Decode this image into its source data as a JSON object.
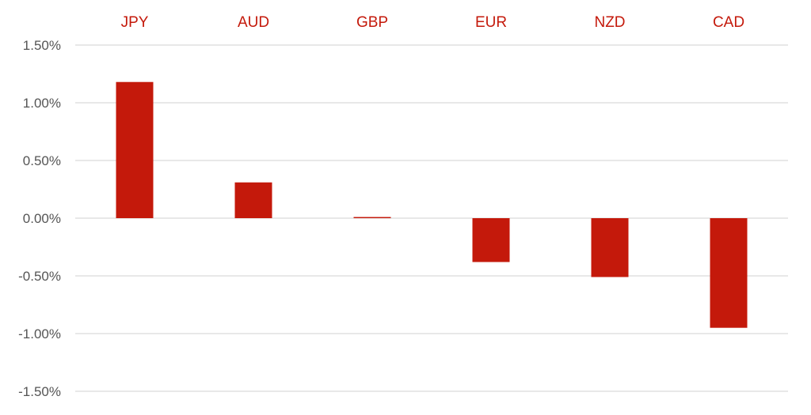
{
  "chart_data": {
    "type": "bar",
    "title": "",
    "xlabel": "",
    "ylabel": "",
    "categories": [
      "JPY",
      "AUD",
      "GBP",
      "EUR",
      "NZD",
      "CAD"
    ],
    "values": [
      1.18,
      0.31,
      0.01,
      -0.38,
      -0.51,
      -0.95
    ],
    "value_unit": "%",
    "ylim": [
      -1.5,
      1.5
    ],
    "y_ticks": [
      "1.50%",
      "1.00%",
      "0.50%",
      "0.00%",
      "-0.50%",
      "-1.00%",
      "-1.50%"
    ],
    "category_label_position": "top",
    "grid": true,
    "legend": "none",
    "colors": {
      "bar": "#c4190b",
      "category_label": "#c4190b",
      "tick_label": "#555555",
      "grid": "#d9d9d9"
    }
  }
}
